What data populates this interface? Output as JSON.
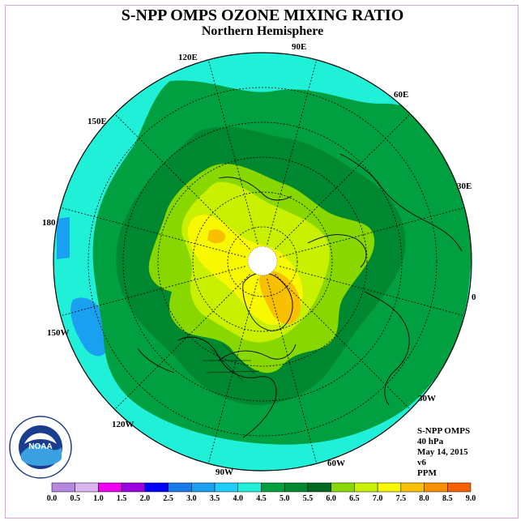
{
  "title": "S-NPP OMPS OZONE MIXING RATIO",
  "subtitle": "Northern Hemisphere",
  "info": {
    "instrument": "S-NPP OMPS",
    "level": "40 hPa",
    "date": "May 14, 2015",
    "version": "v6",
    "units": "PPM"
  },
  "longitude_labels": [
    "120E",
    "90E",
    "60E",
    "150E",
    "30E",
    "180",
    "0",
    "150W",
    "30W",
    "120W",
    "60W",
    "90W"
  ],
  "colorbar": {
    "ticks": [
      "0.0",
      "0.5",
      "1.0",
      "1.5",
      "2.0",
      "2.5",
      "3.0",
      "3.5",
      "4.0",
      "4.5",
      "5.0",
      "5.5",
      "6.0",
      "6.5",
      "7.0",
      "7.5",
      "8.0",
      "8.5",
      "9.0"
    ],
    "colors": [
      "#b688e0",
      "#dab4f0",
      "#f000f0",
      "#9a00e0",
      "#0000ff",
      "#1a7ae8",
      "#1aa0f0",
      "#20ccf8",
      "#20f0d8",
      "#00a040",
      "#008830",
      "#006820",
      "#88d800",
      "#c8f000",
      "#f8f800",
      "#f8c000",
      "#f89000",
      "#f86000",
      "#e80000",
      "#805030"
    ]
  },
  "logo_text": "NOAA",
  "logo_ring_text": "NATIONAL OCEANIC AND ATMOSPHERIC ADMINISTRATION · U.S. DEPARTMENT OF COMMERCE",
  "field_levels": {
    "outer": "3.5-4.0",
    "band1": "4.0-4.5",
    "band2": "4.5-5.0",
    "band3": "5.0-5.5",
    "band4": "5.5-6.0",
    "band5": "6.0-6.5",
    "band6": "6.5-7.0",
    "low_patch": "3.0-3.5"
  }
}
